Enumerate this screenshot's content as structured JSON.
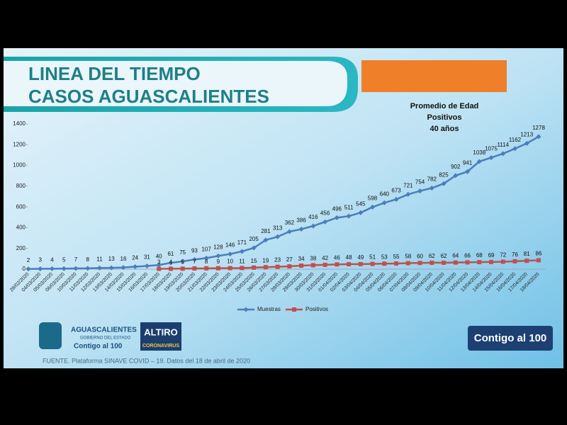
{
  "chart_data": {
    "type": "line",
    "title": "LINEA DEL TIEMPO",
    "subtitle": "CASOS AGUASCALIENTES",
    "annotation": [
      "Promedio de Edad",
      "Positivos",
      "40 años"
    ],
    "categories": [
      "28/02/2020",
      "04/03/2020",
      "05/03/2020",
      "06/03/2020",
      "10/03/2020",
      "11/03/2020",
      "12/03/2020",
      "13/03/2020",
      "14/03/2020",
      "15/03/2020",
      "16/03/2020",
      "17/03/2020",
      "18/03/2020",
      "19/03/2020",
      "20/03/2020",
      "21/03/2020",
      "22/03/2020",
      "23/03/2020",
      "24/03/2020",
      "25/03/2020",
      "26/03/2020",
      "27/03/2020",
      "28/03/2020",
      "29/03/2020",
      "30/03/2020",
      "31/03/2020",
      "01/04/2020",
      "02/04/2020",
      "03/04/2020",
      "04/04/2020",
      "05/04/2020",
      "06/04/2020",
      "07/04/2020",
      "08/04/2020",
      "09/04/2020",
      "10/04/2020",
      "11/04/2020",
      "12/04/2020",
      "13/04/2020",
      "14/04/2020",
      "15/04/2020",
      "16/04/2020",
      "17/04/2020",
      "18/04/2020"
    ],
    "series": [
      {
        "name": "Muestras",
        "color": "#4a7ebb",
        "values": [
          2,
          3,
          4,
          5,
          7,
          8,
          11,
          13,
          16,
          24,
          31,
          40,
          61,
          75,
          93,
          107,
          128,
          146,
          171,
          205,
          281,
          313,
          362,
          386,
          416,
          456,
          496,
          511,
          545,
          598,
          640,
          673,
          721,
          754,
          782,
          825,
          902,
          941,
          1038,
          1075,
          1114,
          1162,
          1213,
          1278
        ]
      },
      {
        "name": "Positivos",
        "color": "#c0504d",
        "values": [
          null,
          null,
          null,
          null,
          null,
          null,
          null,
          null,
          null,
          null,
          null,
          3,
          4,
          5,
          7,
          8,
          9,
          10,
          11,
          15,
          19,
          23,
          27,
          34,
          38,
          42,
          46,
          48,
          49,
          51,
          53,
          55,
          58,
          60,
          62,
          62,
          64,
          66,
          68,
          69,
          72,
          76,
          81,
          86
        ]
      }
    ],
    "ylim": [
      0,
      1400
    ],
    "yticks": [
      0,
      200,
      400,
      600,
      800,
      1000,
      1200,
      1400
    ],
    "legend": "bottom"
  },
  "branding": {
    "state": "AGUASCALIENTES",
    "government": "GOBIERNO DEL ESTADO",
    "slogan": "Contigo al 100",
    "campaign": "ALTIRO",
    "campaign_sub": "CORONAVIRUS",
    "badge": "Contigo al 100"
  },
  "source": "FUENTE. Plataforma SINAVE COVID – 19. Datos del 18 de abril de 2020"
}
